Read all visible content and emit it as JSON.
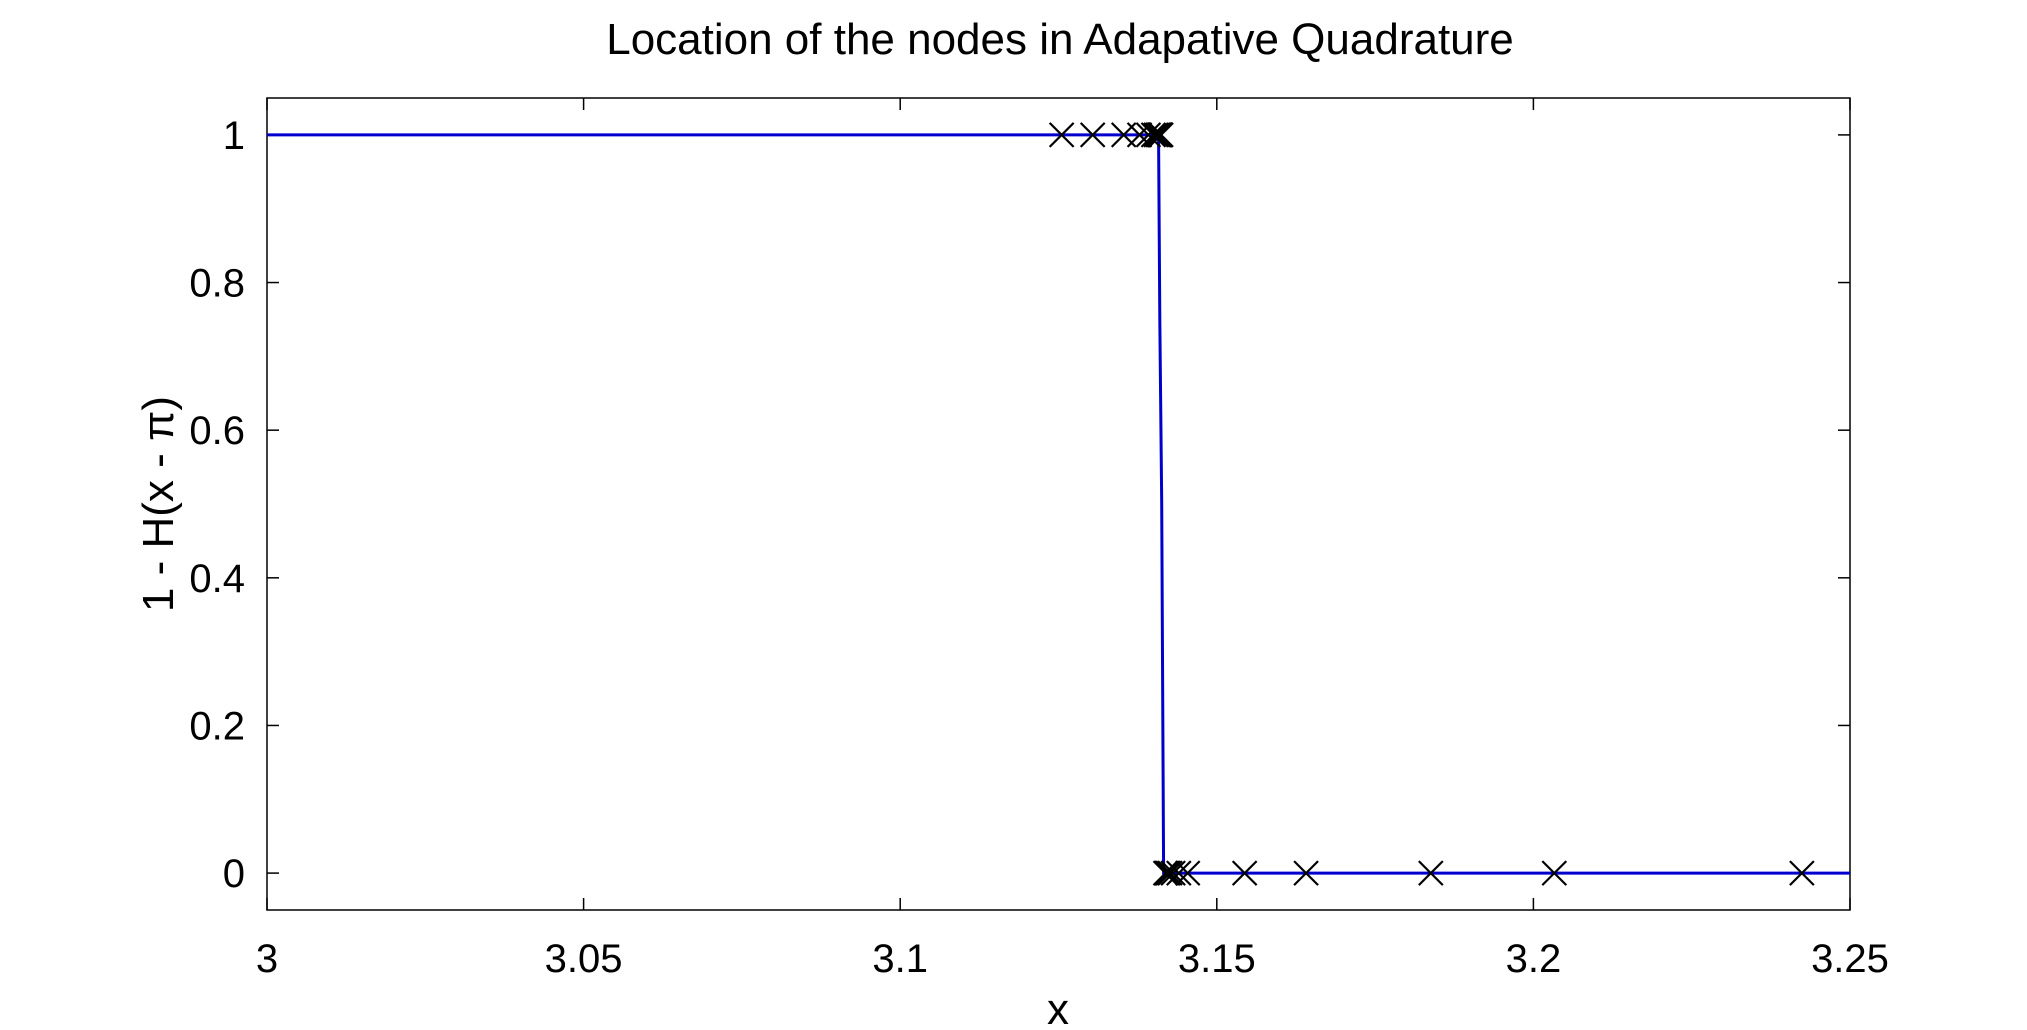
{
  "chart_data": {
    "type": "line",
    "title": "Location of the nodes in Adapative Quadrature",
    "xlabel": "x",
    "ylabel": "1 - H(x - π)",
    "xlim": [
      3,
      3.25
    ],
    "ylim": [
      -0.05,
      1.05
    ],
    "xticks": [
      3,
      3.05,
      3.1,
      3.15,
      3.2,
      3.25
    ],
    "xtick_labels": [
      "3",
      "3.05",
      "3.1",
      "3.15",
      "3.2",
      "3.25"
    ],
    "yticks": [
      0,
      0.2,
      0.4,
      0.6,
      0.8,
      1
    ],
    "ytick_labels": [
      "0",
      "0.2",
      "0.4",
      "0.6",
      "0.8",
      "1"
    ],
    "grid": false,
    "series": [
      {
        "kind": "line",
        "color": "#0000cc",
        "x": [
          3,
          3.1408,
          3.141,
          3.1413,
          3.1416,
          3.25
        ],
        "y": [
          1,
          1,
          0.75,
          0.5,
          0,
          0
        ]
      },
      {
        "kind": "markers",
        "marker": "x",
        "color": "#000000",
        "x": [
          3.1255,
          3.1304,
          3.1353,
          3.1378,
          3.1392,
          3.14,
          3.1404,
          3.1407,
          3.1409,
          3.141,
          3.1411,
          3.1412,
          3.1419,
          3.1421,
          3.1423,
          3.1426,
          3.1431,
          3.144,
          3.1454,
          3.1544,
          3.1641,
          3.1838,
          3.2033,
          3.2424
        ],
        "y": [
          1,
          1,
          1,
          1,
          1,
          1,
          1,
          1,
          1,
          1,
          1,
          1,
          0,
          0,
          0,
          0,
          0,
          0,
          0,
          0,
          0,
          0,
          0,
          0
        ]
      }
    ]
  }
}
